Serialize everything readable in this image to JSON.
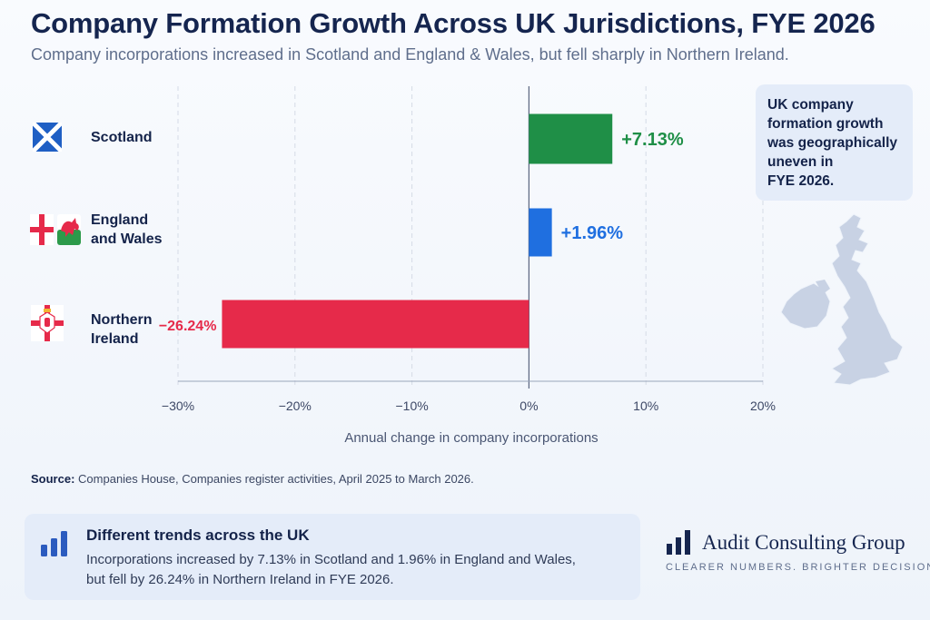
{
  "header": {
    "title": "Company Formation Growth Across UK Jurisdictions, FYE 2026",
    "subtitle": "Company incorporations increased in Scotland and England & Wales, but fell sharply in Northern Ireland."
  },
  "chart_data": {
    "type": "bar",
    "orientation": "horizontal",
    "categories": [
      "Scotland",
      "England and Wales",
      "Northern Ireland"
    ],
    "values": [
      7.13,
      1.96,
      -26.24
    ],
    "data_labels": [
      "+7.13%",
      "+1.96%",
      "−26.24%"
    ],
    "colors": [
      "#1f8f47",
      "#1f6fe0",
      "#e62a4a"
    ],
    "xlabel": "Annual change in company incorporations",
    "xlim": [
      -30,
      20
    ],
    "xticks": [
      -30,
      -20,
      -10,
      0,
      10,
      20
    ],
    "xtick_labels": [
      "−30%",
      "−20%",
      "−10%",
      "0%",
      "10%",
      "20%"
    ],
    "grid": true,
    "category_flags": [
      "scotland-flag-icon",
      "england-wales-flags-icon",
      "northern-ireland-flag-icon"
    ]
  },
  "category_labels": {
    "scotland": [
      "Scotland"
    ],
    "england_wales": [
      "England",
      "and Wales"
    ],
    "northern_ireland": [
      "Northern",
      "Ireland"
    ]
  },
  "takeaway": {
    "lines": [
      "UK company",
      "formation growth",
      "was geographically",
      "uneven in",
      "FYE 2026."
    ],
    "map_icon": "uk-map-icon"
  },
  "source": {
    "label": "Source:",
    "text": "Companies House, Companies register activities, April 2025 to March 2026."
  },
  "callout": {
    "icon": "bar-chart-icon",
    "title": "Different trends across the UK",
    "body_line1": "Incorporations increased by 7.13% in Scotland and 1.96% in England and Wales,",
    "body_line2": "but fell by 26.24% in Northern Ireland in FYE 2026."
  },
  "brand": {
    "icon": "brand-bars-icon",
    "name": "Audit Consulting Group",
    "tagline": "CLEARER NUMBERS. BRIGHTER DECISIONS."
  }
}
